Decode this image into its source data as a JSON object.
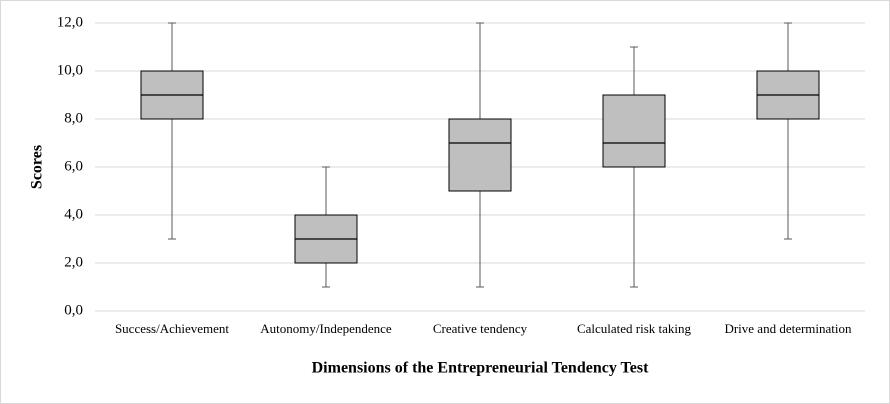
{
  "chart_data": {
    "type": "box",
    "x_label": "Dimensions of the Entrepreneurial Tendency Test",
    "y_label": "Scores",
    "categories": [
      "Success/Achievement",
      "Autonomy/Independence",
      "Creative tendency",
      "Calculated risk taking",
      "Drive and determination"
    ],
    "boxes": [
      {
        "min": 3,
        "q1": 8,
        "median": 9,
        "q3": 10,
        "max": 12
      },
      {
        "min": 1,
        "q1": 2,
        "median": 3,
        "q3": 4,
        "max": 6
      },
      {
        "min": 1,
        "q1": 5,
        "median": 7,
        "q3": 8,
        "max": 12
      },
      {
        "min": 1,
        "q1": 6,
        "median": 7,
        "q3": 9,
        "max": 11
      },
      {
        "min": 3,
        "q1": 8,
        "median": 9,
        "q3": 10,
        "max": 12
      }
    ],
    "color": "#bfbfbf",
    "ylim": [
      0,
      12
    ],
    "yticks": [
      {
        "value": 0,
        "label": "0,0"
      },
      {
        "value": 2,
        "label": "2,0"
      },
      {
        "value": 4,
        "label": "4,0"
      },
      {
        "value": 6,
        "label": "6,0"
      },
      {
        "value": 8,
        "label": "8,0"
      },
      {
        "value": 10,
        "label": "10,0"
      },
      {
        "value": 12,
        "label": "12,0"
      }
    ],
    "grid": true
  }
}
